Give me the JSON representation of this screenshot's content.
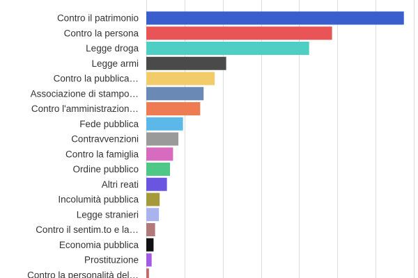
{
  "chart_data": {
    "type": "bar",
    "orientation": "horizontal",
    "grid": true,
    "xlim": [
      0,
      7000
    ],
    "x_gridlines": [
      0,
      1000,
      2000,
      3000,
      4000,
      5000,
      6000,
      7000
    ],
    "categories": [
      "Contro il patrimonio",
      "Contro la persona",
      "Legge droga",
      "Legge armi",
      "Contro la pubblica…",
      "Associazione di stampo…",
      "Contro l'amministrazion…",
      "Fede pubblica",
      "Contravvenzioni",
      "Contro la famiglia",
      "Ordine pubblico",
      "Altri reati",
      "Incolumità pubblica",
      "Legge stranieri",
      "Contro il sentim.to e la…",
      "Economia pubblica",
      "Prostituzione",
      "Contro la personalità del…"
    ],
    "values": [
      6740,
      4860,
      4260,
      2090,
      1790,
      1500,
      1410,
      960,
      840,
      700,
      620,
      540,
      350,
      330,
      230,
      190,
      140,
      70
    ],
    "colors": [
      "#3a5fcd",
      "#e95457",
      "#4fcfc4",
      "#4a4a4a",
      "#f2cc6b",
      "#6a89b5",
      "#ee7b52",
      "#5db8ea",
      "#9a9a9a",
      "#d66bbf",
      "#4fc786",
      "#6a55e0",
      "#a59a3a",
      "#a9b4ef",
      "#b07a7a",
      "#111111",
      "#a35be6",
      "#c26a6a"
    ]
  }
}
